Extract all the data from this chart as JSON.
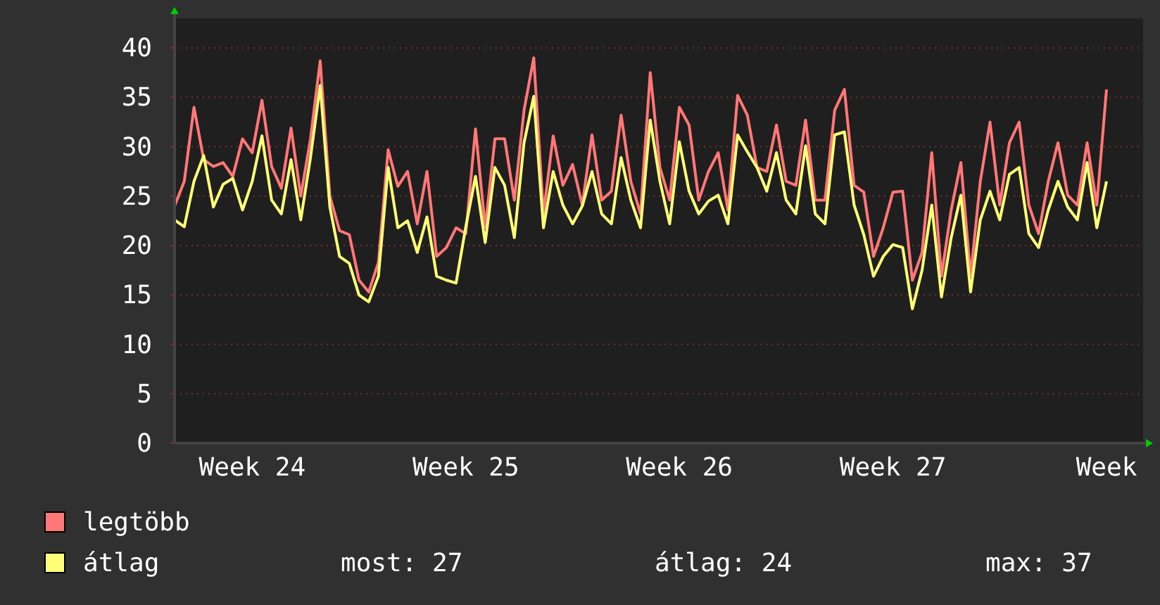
{
  "chart_data": {
    "type": "line",
    "ylim": [
      0,
      43
    ],
    "categories": [
      null,
      null,
      null,
      null,
      null,
      null,
      null,
      null,
      "Week 24",
      null,
      null,
      null,
      null,
      null,
      null,
      null,
      null,
      null,
      null,
      null,
      null,
      null,
      null,
      null,
      null,
      null,
      null,
      null,
      null,
      null,
      "Week 25",
      null,
      null,
      null,
      null,
      null,
      null,
      null,
      null,
      null,
      null,
      null,
      null,
      null,
      null,
      null,
      null,
      null,
      null,
      null,
      null,
      null,
      "Week 26",
      null,
      null,
      null,
      null,
      null,
      null,
      null,
      null,
      null,
      null,
      null,
      null,
      null,
      null,
      null,
      null,
      null,
      null,
      null,
      null,
      null,
      "Week 27",
      null,
      null,
      null,
      null,
      null,
      null,
      null,
      null,
      null,
      null,
      null,
      null,
      null,
      null,
      null,
      null,
      null,
      null,
      null,
      null,
      null,
      "Week"
    ],
    "yticks": [
      0,
      5,
      10,
      15,
      20,
      25,
      30,
      35,
      40
    ],
    "grid": "y",
    "legend": "bottom left",
    "line_style": "solid",
    "annotations": [
      "most: 27",
      "átlag: 24",
      "max: 37"
    ],
    "series": [
      {
        "name": "legtöbb",
        "color": "#ff7777",
        "values": [
          24,
          26.5,
          34,
          28.7,
          28,
          28.4,
          27,
          30.8,
          29.4,
          34.7,
          28,
          25.8,
          31.9,
          25,
          30.8,
          38.7,
          25,
          21.5,
          21.1,
          16.5,
          15.3,
          18.3,
          29.7,
          26,
          27.5,
          22.2,
          27.5,
          18.9,
          19.8,
          21.8,
          21.2,
          31.8,
          21.8,
          30.8,
          30.8,
          24.6,
          33.7,
          39,
          23.2,
          31.1,
          26.1,
          28.2,
          24.1,
          31.2,
          24.6,
          25.5,
          33.2,
          26.5,
          23.2,
          37.5,
          27.9,
          24.6,
          34,
          32.2,
          24.6,
          27.5,
          29.4,
          23.6,
          35.2,
          33.2,
          27.9,
          27.5,
          32.2,
          26.5,
          26.1,
          32.7,
          24.6,
          24.6,
          33.7,
          35.8,
          26.1,
          25.4,
          18.9,
          21.8,
          25.4,
          25.5,
          16.5,
          19.3,
          29.4,
          16.9,
          23.6,
          28.4,
          16.9,
          26.5,
          32.5,
          24.1,
          30.4,
          32.5,
          24.1,
          21.2,
          26.5,
          30.4,
          25.1,
          24.1,
          30.4,
          24.1,
          35.8
        ]
      },
      {
        "name": "átlag",
        "color": "#ffff77",
        "values": [
          22.6,
          21.9,
          26.5,
          29.1,
          23.9,
          26.2,
          26.8,
          23.6,
          26.5,
          31.1,
          24.6,
          23.2,
          28.7,
          22.6,
          28.9,
          36.2,
          23.9,
          18.9,
          18.2,
          15,
          14.3,
          16.9,
          27.9,
          21.8,
          22.5,
          19.3,
          22.9,
          16.9,
          16.5,
          16.2,
          21.9,
          27,
          20.3,
          27.9,
          26.1,
          20.8,
          30.4,
          35.1,
          21.8,
          27.5,
          24.1,
          22.2,
          24,
          27.5,
          23.2,
          22.2,
          28.9,
          24.6,
          21.8,
          32.7,
          26.5,
          22.2,
          30.5,
          25.5,
          23.2,
          24.5,
          25.1,
          22.2,
          31.2,
          29.5,
          27.9,
          25.5,
          29.4,
          24.6,
          23.2,
          30.1,
          23.2,
          22.2,
          31.2,
          31.5,
          24.1,
          21.1,
          16.9,
          18.9,
          20.1,
          19.8,
          13.6,
          17.5,
          24.1,
          14.8,
          20.8,
          25.1,
          15.3,
          22.6,
          25.5,
          22.6,
          27.2,
          27.9,
          21.2,
          19.8,
          23.6,
          26.5,
          23.9,
          22.6,
          28.4,
          21.8,
          26.5
        ]
      }
    ]
  }
}
